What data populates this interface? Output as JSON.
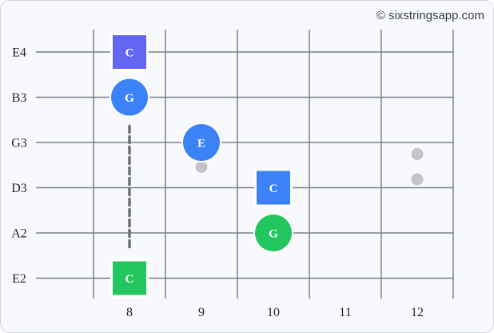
{
  "copyright": "© sixstringsapp.com",
  "strings": [
    "E4",
    "B3",
    "G3",
    "D3",
    "A2",
    "E2"
  ],
  "frets": [
    "8",
    "9",
    "10",
    "11",
    "12"
  ],
  "inlays": [
    {
      "fret": "9",
      "count": 1
    },
    {
      "fret": "12",
      "count": 2
    }
  ],
  "notes": [
    {
      "string": "E4",
      "fret": "8",
      "label": "C",
      "shape": "square",
      "color": "#6366f1"
    },
    {
      "string": "B3",
      "fret": "8",
      "label": "G",
      "shape": "circle",
      "color": "#3b82f6"
    },
    {
      "string": "G3",
      "fret": "9",
      "label": "E",
      "shape": "circle",
      "color": "#3b82f6"
    },
    {
      "string": "D3",
      "fret": "10",
      "label": "C",
      "shape": "square",
      "color": "#3b82f6"
    },
    {
      "string": "A2",
      "fret": "10",
      "label": "G",
      "shape": "circle",
      "color": "#22c55e"
    },
    {
      "string": "E2",
      "fret": "8",
      "label": "C",
      "shape": "square",
      "color": "#22c55e"
    }
  ],
  "connector": {
    "from_string": "B3",
    "to_string": "E2",
    "fret": "8",
    "style": "dashed"
  },
  "colors": {
    "line": "#7a808c",
    "inlay": "#c2c4c8",
    "connector": "#6b6f78"
  }
}
